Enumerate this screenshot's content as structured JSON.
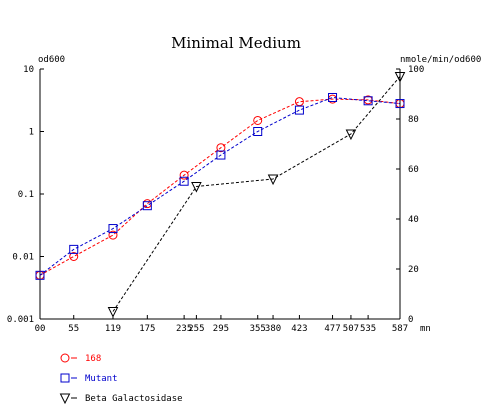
{
  "chart_data": {
    "type": "line",
    "title": "Minimal Medium",
    "left_axis": {
      "label": "od600",
      "scale": "log",
      "range": [
        0.001,
        10
      ],
      "ticks": [
        {
          "value": 10,
          "label": "10"
        },
        {
          "value": 1,
          "label": "1"
        },
        {
          "value": 0.1,
          "label": "0.1"
        },
        {
          "value": 0.01,
          "label": "0.01"
        },
        {
          "value": 0.001,
          "label": "0.001"
        }
      ]
    },
    "right_axis": {
      "label": "nmole/min/od600",
      "scale": "linear",
      "range": [
        0,
        100
      ],
      "ticks": [
        {
          "value": 100,
          "label": "100"
        },
        {
          "value": 80,
          "label": "80"
        },
        {
          "value": 60,
          "label": "60"
        },
        {
          "value": 40,
          "label": "40"
        },
        {
          "value": 20,
          "label": "20"
        },
        {
          "value": 0,
          "label": "0"
        }
      ]
    },
    "x_axis": {
      "unit": "mn",
      "range": [
        0,
        587
      ],
      "ticks": [
        {
          "value": 0,
          "label": "00"
        },
        {
          "value": 55,
          "label": "55"
        },
        {
          "value": 119,
          "label": "119"
        },
        {
          "value": 175,
          "label": "175"
        },
        {
          "value": 235,
          "label": "235"
        },
        {
          "value": 255,
          "label": "255"
        },
        {
          "value": 295,
          "label": "295"
        },
        {
          "value": 355,
          "label": "355"
        },
        {
          "value": 380,
          "label": "380"
        },
        {
          "value": 423,
          "label": "423"
        },
        {
          "value": 477,
          "label": "477"
        },
        {
          "value": 507,
          "label": "507"
        },
        {
          "value": 535,
          "label": "535"
        },
        {
          "value": 587,
          "label": "587"
        }
      ]
    },
    "series": [
      {
        "name": "168",
        "axis": "left",
        "marker": "circle",
        "color": "#ff0000",
        "points": [
          {
            "x": 0,
            "y": 0.005
          },
          {
            "x": 55,
            "y": 0.01
          },
          {
            "x": 119,
            "y": 0.022
          },
          {
            "x": 175,
            "y": 0.07
          },
          {
            "x": 235,
            "y": 0.2
          },
          {
            "x": 295,
            "y": 0.55
          },
          {
            "x": 355,
            "y": 1.5
          },
          {
            "x": 423,
            "y": 3.0
          },
          {
            "x": 477,
            "y": 3.3
          },
          {
            "x": 535,
            "y": 3.2
          },
          {
            "x": 587,
            "y": 2.8
          }
        ]
      },
      {
        "name": "Mutant",
        "axis": "left",
        "marker": "square",
        "color": "#0000cc",
        "points": [
          {
            "x": 0,
            "y": 0.005
          },
          {
            "x": 55,
            "y": 0.013
          },
          {
            "x": 119,
            "y": 0.028
          },
          {
            "x": 175,
            "y": 0.065
          },
          {
            "x": 235,
            "y": 0.16
          },
          {
            "x": 295,
            "y": 0.42
          },
          {
            "x": 355,
            "y": 1.0
          },
          {
            "x": 423,
            "y": 2.2
          },
          {
            "x": 477,
            "y": 3.5
          },
          {
            "x": 535,
            "y": 3.1
          },
          {
            "x": 587,
            "y": 2.8
          }
        ]
      },
      {
        "name": "Beta Galactosidase",
        "axis": "right",
        "marker": "triangle-down",
        "color": "#000000",
        "points": [
          {
            "x": 119,
            "y": 3
          },
          {
            "x": 255,
            "y": 53
          },
          {
            "x": 380,
            "y": 56
          },
          {
            "x": 507,
            "y": 74
          },
          {
            "x": 587,
            "y": 97
          }
        ]
      }
    ],
    "legend_position": "bottom-left",
    "grid": false
  }
}
